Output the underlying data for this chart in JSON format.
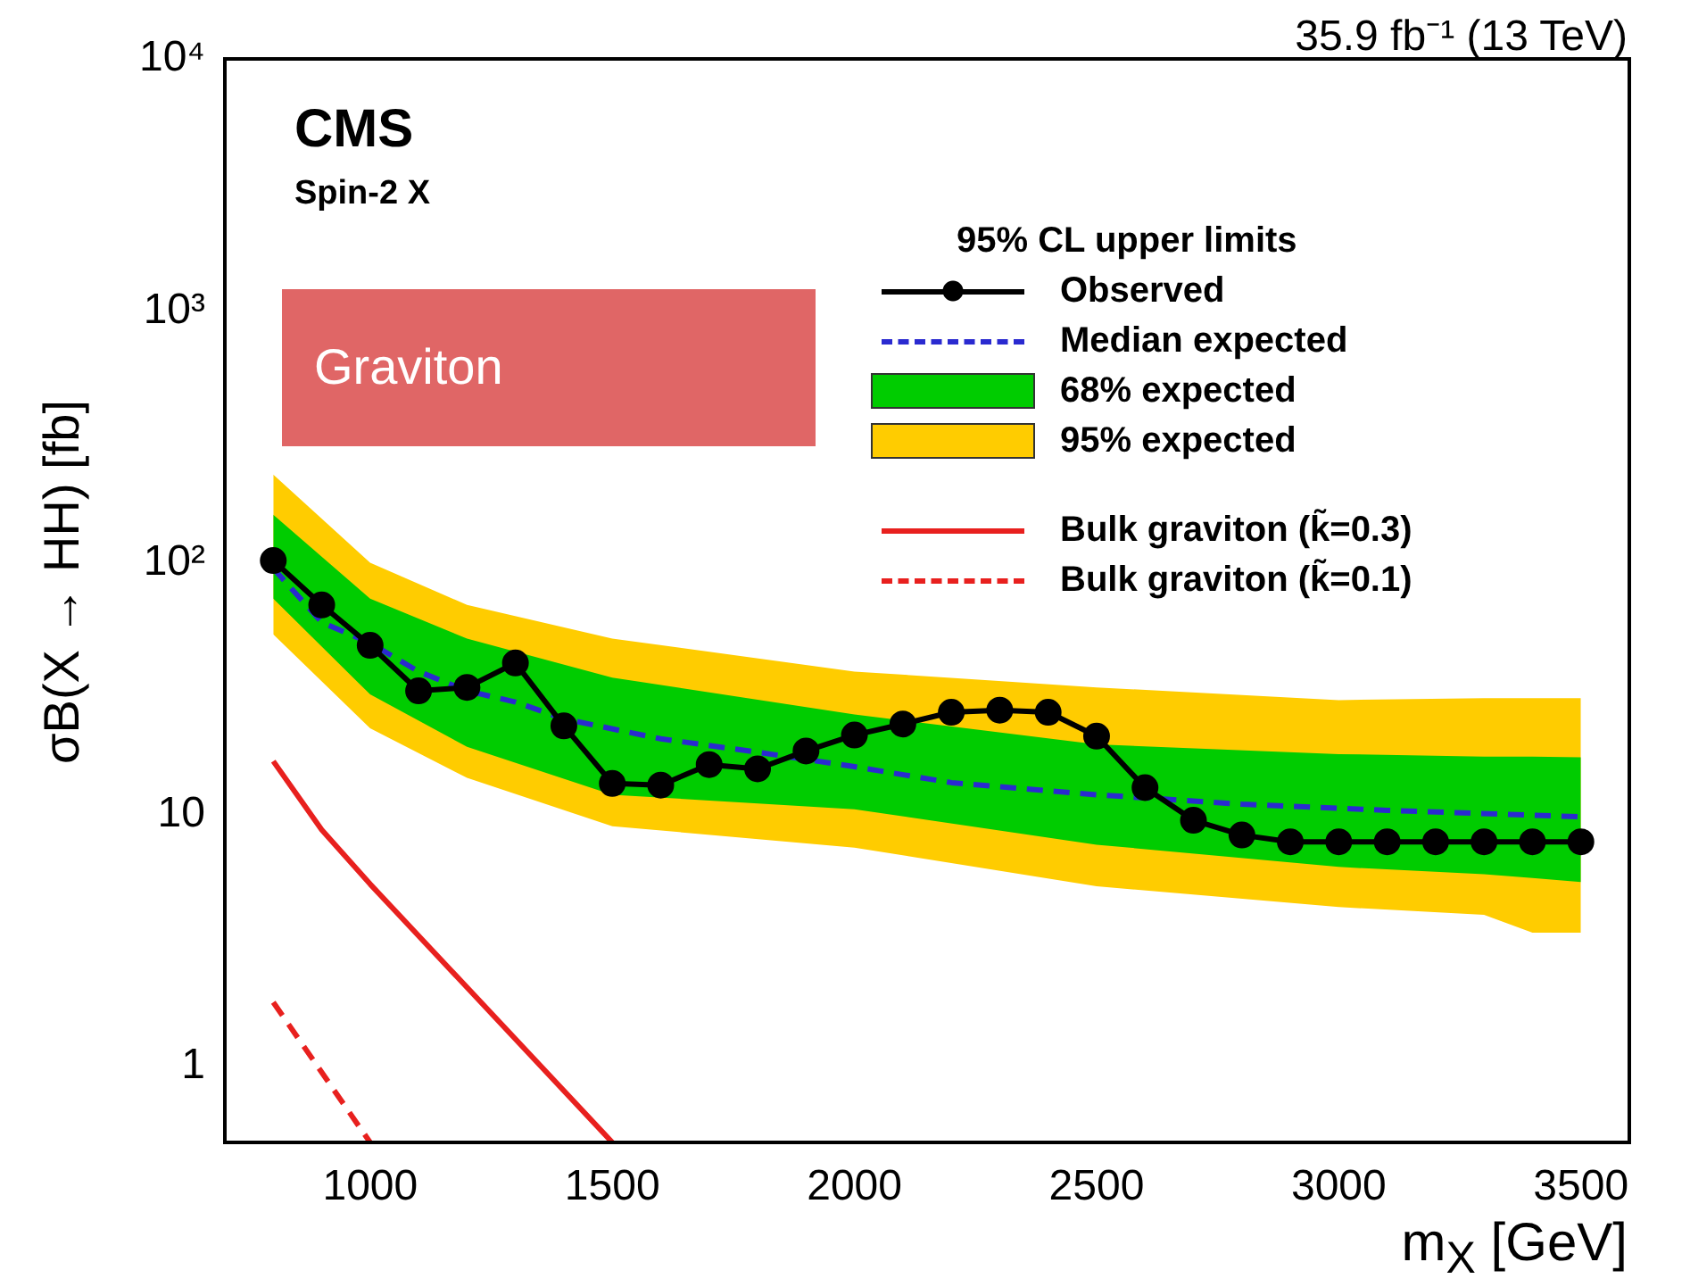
{
  "chart_data": {
    "type": "line",
    "xlabel": "m$_{X}$ [GeV]",
    "ylabel": "σB(X → HH) [fb]",
    "legend_title": "95% CL upper limits",
    "annotations": [
      "35.9 fb⁻¹ (13 TeV)",
      "CMS",
      "Spin-2 X",
      "Graviton"
    ],
    "xlim": [
      700,
      3600
    ],
    "xticks": [
      1000,
      1500,
      2000,
      2500,
      3000,
      3500
    ],
    "ylim": [
      0.5,
      10000
    ],
    "yticks": [
      1,
      10,
      {
        "value": 100,
        "label": "10²"
      },
      {
        "value": 1000,
        "label": "10³"
      },
      {
        "value": 10000,
        "label": "10⁴"
      }
    ],
    "log": "y",
    "grid": false,
    "legend": "top right",
    "series": [
      {
        "name": "Observed",
        "type": "line",
        "color": "#000000",
        "marker": "circle",
        "line_style": "solid",
        "x": [
          800,
          900,
          1000,
          1100,
          1200,
          1300,
          1400,
          1500,
          1600,
          1700,
          1800,
          1900,
          2000,
          2100,
          2200,
          2300,
          2400,
          2500,
          2600,
          2700,
          2800,
          2900,
          3000,
          3100,
          3200,
          3300,
          3400,
          3500
        ],
        "values": [
          102,
          68,
          47,
          31,
          32,
          40,
          22.5,
          13.3,
          13.1,
          15.8,
          15.2,
          17.9,
          20.7,
          22.9,
          25.5,
          26,
          25.5,
          20.5,
          12.8,
          9.5,
          8.3,
          7.8,
          7.8,
          7.8,
          7.8,
          7.8,
          7.8,
          7.8
        ]
      },
      {
        "name": "Median expected",
        "type": "line",
        "color": "#2a2ad0",
        "marker": "none",
        "line_style": "dashed",
        "x": [
          800,
          900,
          1000,
          1100,
          1200,
          1300,
          1400,
          1600,
          1800,
          2000,
          2200,
          2500,
          2800,
          3100,
          3500
        ],
        "values": [
          95,
          58,
          48,
          37,
          31,
          28,
          24,
          20,
          17.7,
          15.5,
          13.4,
          12,
          11,
          10.4,
          9.8
        ]
      },
      {
        "name": "68% expected",
        "type": "line",
        "color": "#00cc00",
        "x": [
          800,
          1000,
          1200,
          1500,
          2000,
          2500,
          3000,
          3300,
          3400,
          3500
        ],
        "values": [
          null,
          null,
          null,
          null,
          null,
          null,
          null,
          null,
          null,
          null
        ],
        "lower": [
          72,
          30,
          18.6,
          12,
          10.5,
          7.6,
          6.2,
          5.8,
          5.6,
          5.4
        ],
        "upper": [
          155,
          72,
          50,
          35,
          25,
          19,
          17.4,
          17,
          17,
          16.9
        ]
      },
      {
        "name": "95% expected",
        "type": "line",
        "color": "#ffcc00",
        "x": [
          800,
          1000,
          1200,
          1500,
          2000,
          2500,
          3000,
          3300,
          3400,
          3500
        ],
        "values": [
          null,
          null,
          null,
          null,
          null,
          null,
          null,
          null,
          null,
          null
        ],
        "lower": [
          52,
          22,
          14,
          9,
          7.4,
          5.2,
          4.3,
          4,
          3.4,
          3.4
        ],
        "upper": [
          224,
          100,
          68,
          50,
          37,
          32,
          28.5,
          29,
          29,
          29
        ]
      },
      {
        "name": "Bulk graviton (k̃=0.3)",
        "type": "line",
        "color": "#e8201e",
        "marker": "none",
        "line_style": "solid",
        "x": [
          800,
          900,
          1000,
          1500
        ],
        "values": [
          16.3,
          8.7,
          5.3,
          0.5
        ]
      },
      {
        "name": "Bulk graviton (k̃=0.1)",
        "type": "line",
        "color": "#e8201e",
        "marker": "none",
        "line_style": "dashed",
        "x": [
          800,
          1000
        ],
        "values": [
          1.8,
          0.5
        ]
      }
    ]
  }
}
